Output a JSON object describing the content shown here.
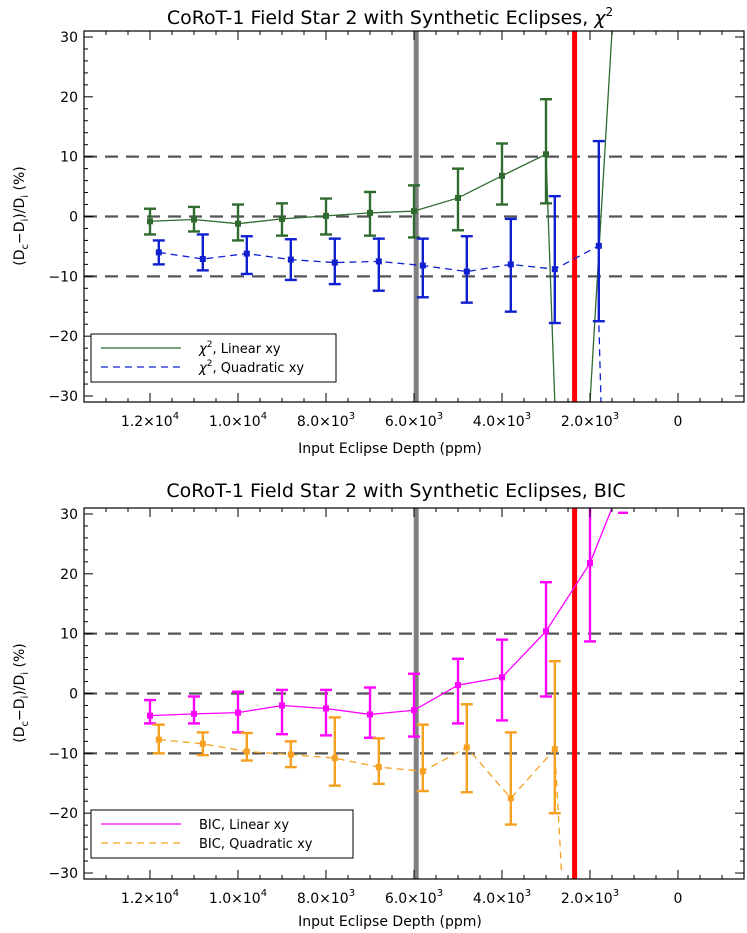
{
  "chart_data": [
    {
      "type": "line",
      "title": "CoRoT-1 Field Star 2 with Synthetic Eclipses, χ²",
      "title_main": "CoRoT-1 Field Star 2 with Synthetic Eclipses, ",
      "title_chi": "χ",
      "title_sup": "2",
      "xlabel": "Input Eclipse Depth (ppm)",
      "ylabel": "(D_c − D_i)/D_i (%)",
      "x_reversed": true,
      "xlim": [
        13500,
        -1500
      ],
      "ylim": [
        -31,
        31
      ],
      "xticks": [
        {
          "value": 12000,
          "mant": "1.2×10",
          "exp": "4"
        },
        {
          "value": 10000,
          "mant": "1.0×10",
          "exp": "4"
        },
        {
          "value": 8000,
          "mant": "8.0×10",
          "exp": "3"
        },
        {
          "value": 6000,
          "mant": "6.0×10",
          "exp": "3"
        },
        {
          "value": 4000,
          "mant": "4.0×10",
          "exp": "3"
        },
        {
          "value": 2000,
          "mant": "2.0×10",
          "exp": "3"
        },
        {
          "value": 0,
          "mant": "0",
          "exp": ""
        }
      ],
      "yticks": [
        30,
        20,
        10,
        0,
        -10,
        -20,
        -30
      ],
      "hlines": [
        10,
        0,
        -10
      ],
      "vlines": [
        {
          "x": 5950,
          "color": "#808080"
        },
        {
          "x": 2350,
          "color": "#ff0000"
        }
      ],
      "legend": {
        "position": "bottom-left"
      },
      "series": [
        {
          "name": "χ², Linear xy",
          "legend_main": "χ",
          "legend_sup": "2",
          "legend_rest": ", Linear xy",
          "color": "#2f6b2f",
          "dash": false,
          "x": [
            12000,
            11000,
            10000,
            9000,
            8000,
            7000,
            6000,
            5000,
            4000,
            3000
          ],
          "y": [
            -0.8,
            -0.5,
            -1.2,
            -0.4,
            0.1,
            0.6,
            0.9,
            3.1,
            6.8,
            10.4
          ],
          "err_low": [
            -3.0,
            -2.5,
            -4.0,
            -3.2,
            -3.0,
            -3.2,
            -3.5,
            -2.3,
            2.0,
            2.2
          ],
          "err_high": [
            1.3,
            1.6,
            2.0,
            2.2,
            3.0,
            4.1,
            5.2,
            8.0,
            12.2,
            19.6
          ],
          "tail": [
            [
              2800,
              -31
            ],
            [
              2000,
              -31
            ],
            [
              1500,
              31
            ]
          ]
        },
        {
          "name": "χ², Quadratic xy",
          "legend_main": "χ",
          "legend_sup": "2",
          "legend_rest": ", Quadratic xy",
          "color": "#1020d0",
          "dash": true,
          "x": [
            11800,
            10800,
            9800,
            8800,
            7800,
            6800,
            5800,
            4800,
            3800,
            2800,
            1800
          ],
          "y": [
            -6.0,
            -7.1,
            -6.2,
            -7.2,
            -7.7,
            -7.5,
            -8.2,
            -9.2,
            -8.0,
            -8.8,
            -4.9
          ],
          "err_low": [
            -8.0,
            -9.0,
            -9.6,
            -10.6,
            -11.3,
            -12.4,
            -13.5,
            -14.4,
            -15.9,
            -17.8,
            -17.5
          ],
          "err_high": [
            -4.0,
            -3.0,
            -3.3,
            -3.8,
            -3.7,
            -3.7,
            -3.7,
            -3.3,
            -0.4,
            3.4,
            12.6
          ],
          "tail": [
            [
              1800,
              -17.5
            ],
            [
              1750,
              -31
            ]
          ]
        }
      ]
    },
    {
      "type": "line",
      "title": "CoRoT-1 Field Star 2 with Synthetic Eclipses, BIC",
      "title_main": "CoRoT-1 Field Star 2 with Synthetic Eclipses, BIC",
      "title_chi": "",
      "title_sup": "",
      "xlabel": "Input Eclipse Depth (ppm)",
      "ylabel": "(D_c − D_i)/D_i (%)",
      "x_reversed": true,
      "xlim": [
        13500,
        -1500
      ],
      "ylim": [
        -31,
        31
      ],
      "xticks": [
        {
          "value": 12000,
          "mant": "1.2×10",
          "exp": "4"
        },
        {
          "value": 10000,
          "mant": "1.0×10",
          "exp": "4"
        },
        {
          "value": 8000,
          "mant": "8.0×10",
          "exp": "3"
        },
        {
          "value": 6000,
          "mant": "6.0×10",
          "exp": "3"
        },
        {
          "value": 4000,
          "mant": "4.0×10",
          "exp": "3"
        },
        {
          "value": 2000,
          "mant": "2.0×10",
          "exp": "3"
        },
        {
          "value": 0,
          "mant": "0",
          "exp": ""
        }
      ],
      "yticks": [
        30,
        20,
        10,
        0,
        -10,
        -20,
        -30
      ],
      "hlines": [
        10,
        0,
        -10
      ],
      "vlines": [
        {
          "x": 5950,
          "color": "#808080"
        },
        {
          "x": 2350,
          "color": "#ff0000"
        }
      ],
      "legend": {
        "position": "bottom-left"
      },
      "series": [
        {
          "name": "BIC, Linear xy",
          "legend_main": "BIC, Linear xy",
          "legend_sup": "",
          "legend_rest": "",
          "color": "#ff00ff",
          "dash": false,
          "x": [
            12000,
            11000,
            10000,
            9000,
            8000,
            7000,
            6000,
            5000,
            4000,
            3000,
            2000
          ],
          "y": [
            -3.7,
            -3.4,
            -3.2,
            -2.0,
            -2.5,
            -3.5,
            -2.8,
            1.4,
            2.7,
            10.4,
            21.8
          ],
          "err_low": [
            -5.0,
            -5.0,
            -6.5,
            -6.8,
            -7.0,
            -7.4,
            -7.2,
            -5.0,
            -4.5,
            -0.5,
            8.7
          ],
          "err_high": [
            -1.1,
            -0.5,
            0.3,
            0.6,
            0.6,
            1.0,
            3.3,
            5.8,
            9.0,
            18.6,
            31
          ],
          "tail": [
            [
              1500,
              31
            ]
          ],
          "extra_mark": [
            1250,
            30.2
          ]
        },
        {
          "name": "BIC, Quadratic xy",
          "legend_main": "BIC, Quadratic xy",
          "legend_sup": "",
          "legend_rest": "",
          "color": "#f5a020",
          "dash": true,
          "x": [
            11800,
            10800,
            9800,
            8800,
            7800,
            6800,
            5800,
            4800,
            3800,
            2800
          ],
          "y": [
            -7.7,
            -8.4,
            -9.7,
            -10.2,
            -10.8,
            -12.3,
            -13.0,
            -9.0,
            -17.5,
            -9.3
          ],
          "err_low": [
            -10.0,
            -10.3,
            -11.2,
            -12.3,
            -15.4,
            -15.1,
            -16.3,
            -16.5,
            -21.9,
            -20.0
          ],
          "err_high": [
            -5.2,
            -6.5,
            -6.6,
            -8.0,
            -4.0,
            -7.5,
            -5.2,
            -1.8,
            -6.5,
            5.4
          ],
          "tail": [
            [
              2650,
              -29.5
            ]
          ]
        }
      ]
    }
  ]
}
